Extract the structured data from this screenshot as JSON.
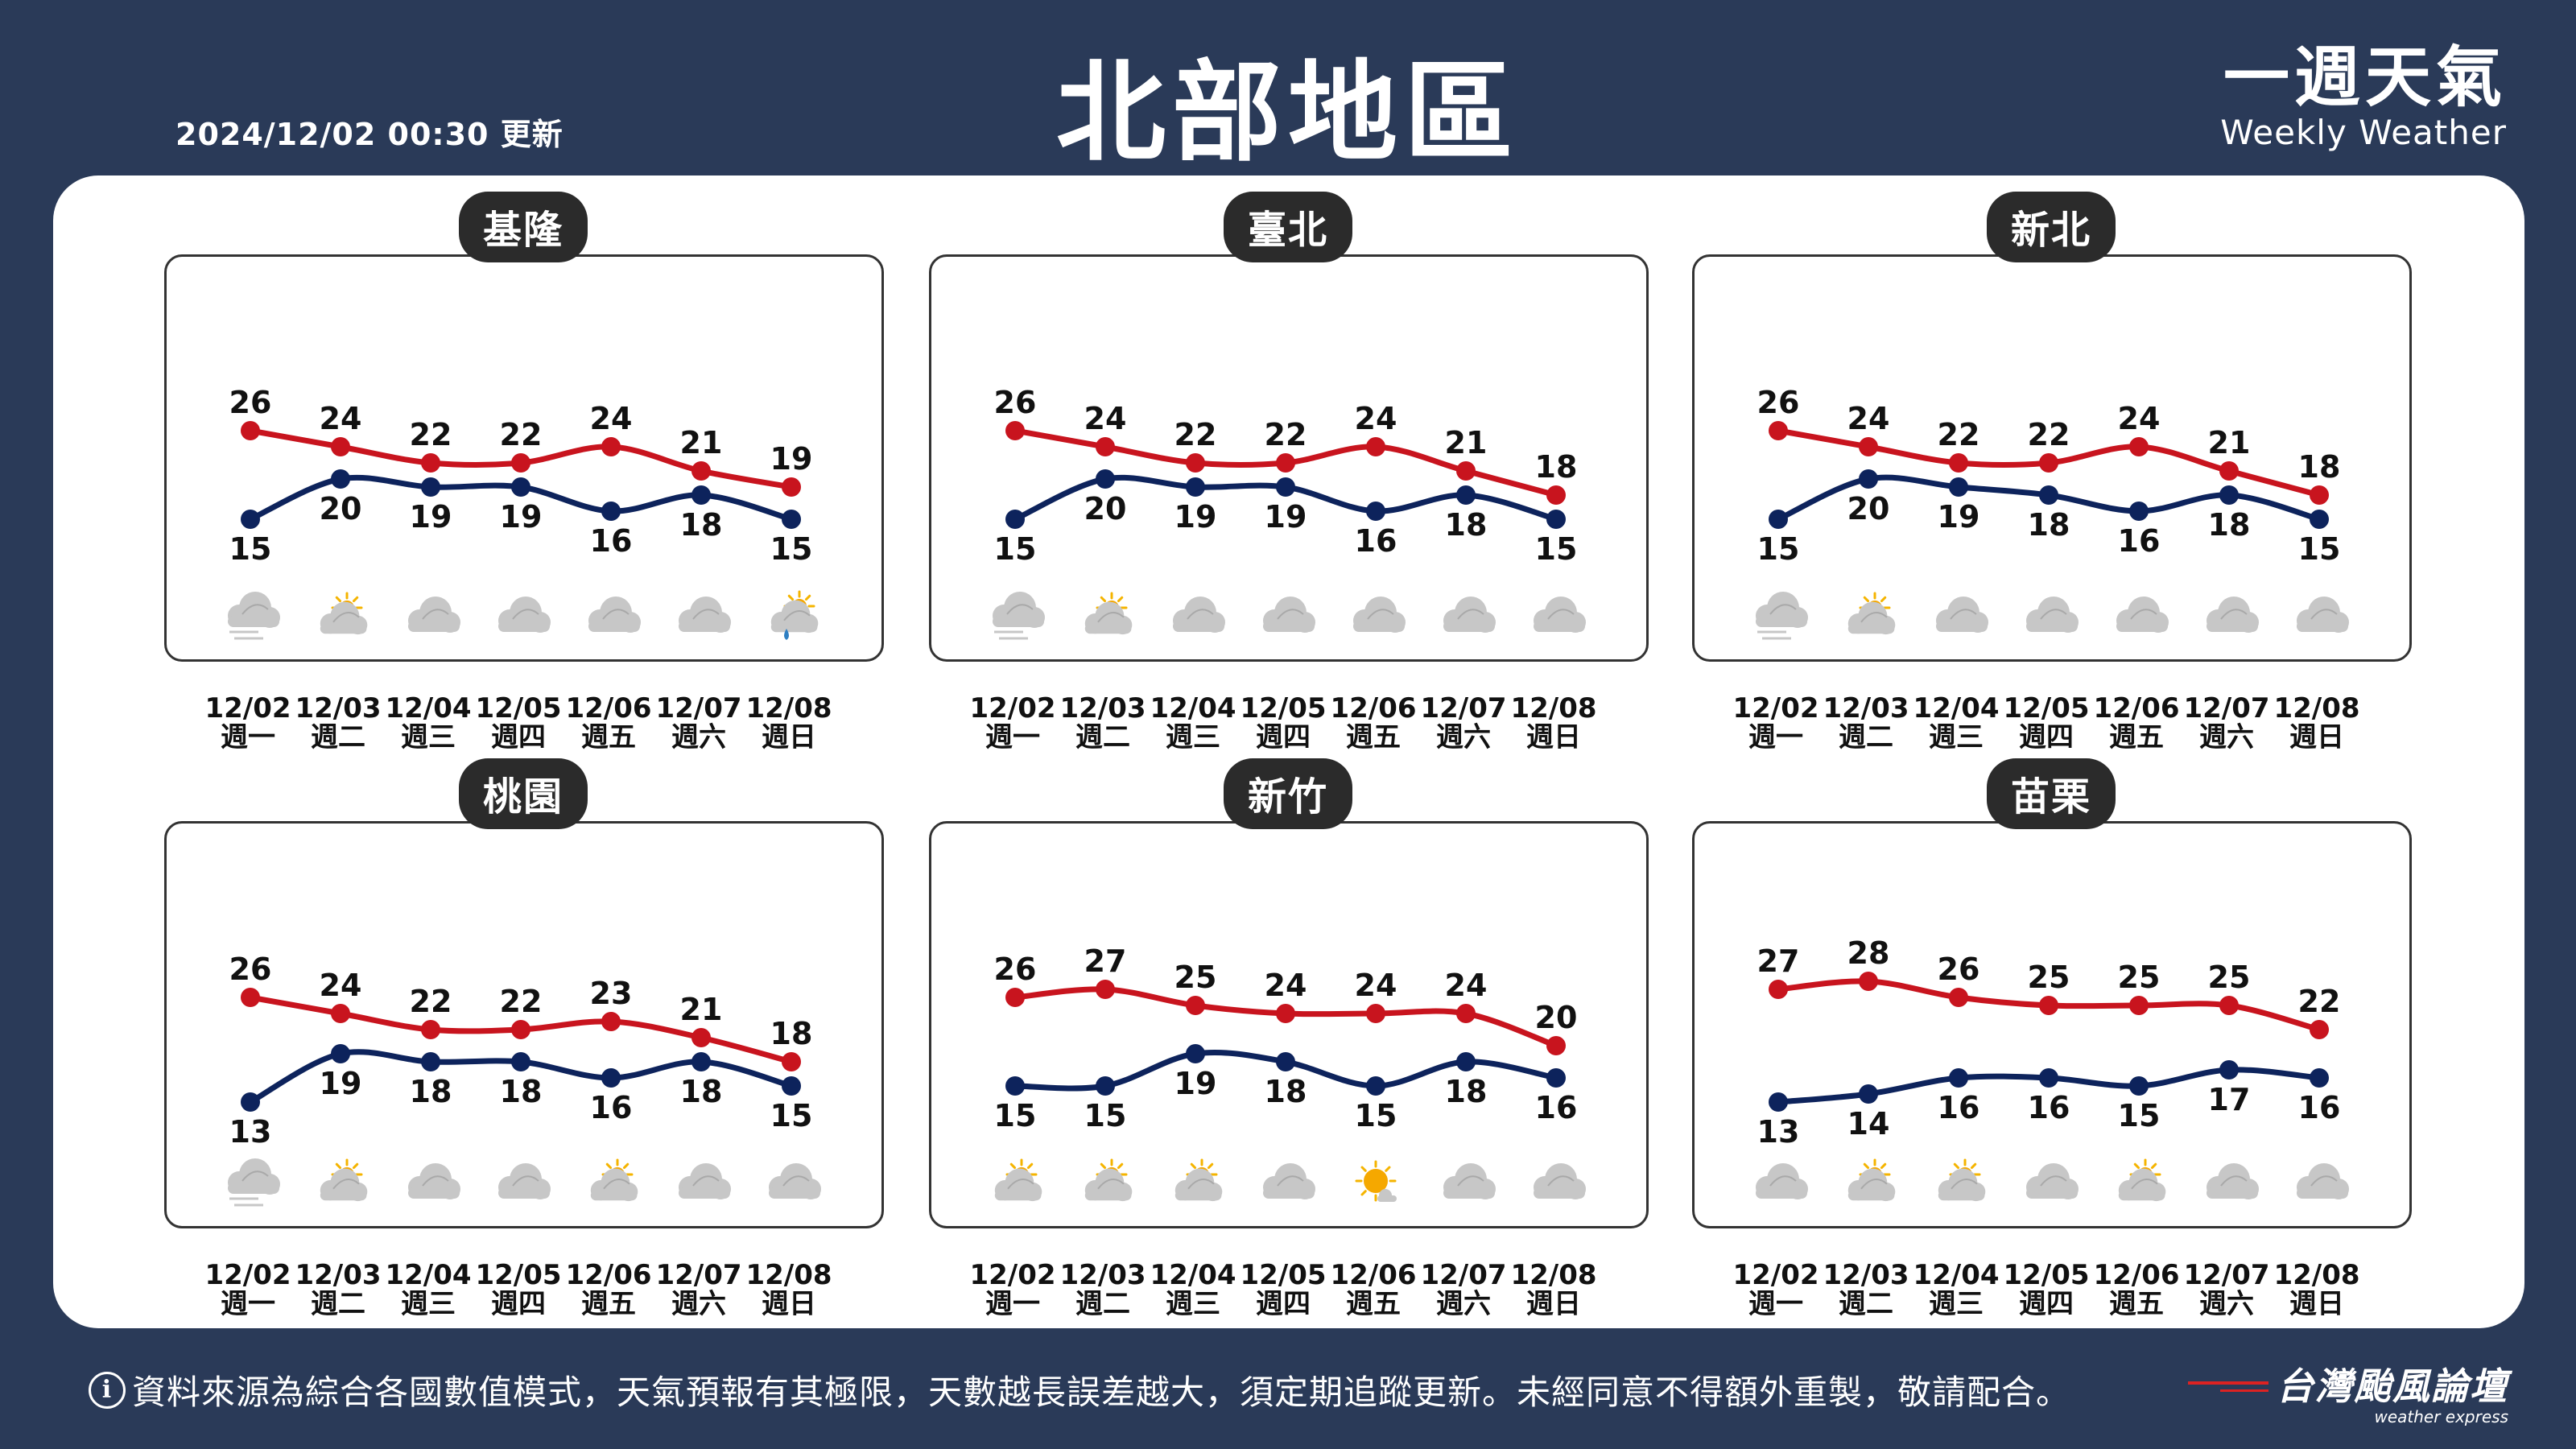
{
  "header": {
    "updated": "2024/12/02 00:30 更新",
    "title": "北部地區",
    "brand_zh": "一週天氣",
    "brand_en": "Weekly Weather"
  },
  "colors": {
    "high": "#c8141e",
    "low": "#0d235c",
    "background": "#2a3a58"
  },
  "days": [
    {
      "date": "12/02",
      "weekday": "週一"
    },
    {
      "date": "12/03",
      "weekday": "週二"
    },
    {
      "date": "12/04",
      "weekday": "週三"
    },
    {
      "date": "12/05",
      "weekday": "週四"
    },
    {
      "date": "12/06",
      "weekday": "週五"
    },
    {
      "date": "12/07",
      "weekday": "週六"
    },
    {
      "date": "12/08",
      "weekday": "週日"
    }
  ],
  "cities": [
    {
      "name": "基隆",
      "high": [
        26,
        24,
        22,
        22,
        24,
        21,
        19
      ],
      "low": [
        15,
        20,
        19,
        19,
        16,
        18,
        15
      ],
      "icons": [
        "cloud-fog-icon",
        "sun-cloud-icon",
        "cloud-icon",
        "cloud-icon",
        "cloud-icon",
        "cloud-icon",
        "sun-cloud-rain-icon"
      ]
    },
    {
      "name": "臺北",
      "high": [
        26,
        24,
        22,
        22,
        24,
        21,
        18
      ],
      "low": [
        15,
        20,
        19,
        19,
        16,
        18,
        15
      ],
      "icons": [
        "cloud-fog-icon",
        "sun-cloud-icon",
        "cloud-icon",
        "cloud-icon",
        "cloud-icon",
        "cloud-icon",
        "cloud-icon"
      ]
    },
    {
      "name": "新北",
      "high": [
        26,
        24,
        22,
        22,
        24,
        21,
        18
      ],
      "low": [
        15,
        20,
        19,
        18,
        16,
        18,
        15
      ],
      "icons": [
        "cloud-fog-icon",
        "sun-cloud-icon",
        "cloud-icon",
        "cloud-icon",
        "cloud-icon",
        "cloud-icon",
        "cloud-icon"
      ]
    },
    {
      "name": "桃園",
      "high": [
        26,
        24,
        22,
        22,
        23,
        21,
        18
      ],
      "low": [
        13,
        19,
        18,
        18,
        16,
        18,
        15
      ],
      "icons": [
        "cloud-fog-icon",
        "sun-cloud-icon",
        "cloud-icon",
        "cloud-icon",
        "sun-cloud-icon",
        "cloud-icon",
        "cloud-icon"
      ]
    },
    {
      "name": "新竹",
      "high": [
        26,
        27,
        25,
        24,
        24,
        24,
        20
      ],
      "low": [
        15,
        15,
        19,
        18,
        15,
        18,
        16
      ],
      "icons": [
        "sun-cloud-icon",
        "sun-cloud-icon",
        "sun-cloud-icon",
        "cloud-icon",
        "sun-icon",
        "cloud-icon",
        "cloud-icon"
      ]
    },
    {
      "name": "苗栗",
      "high": [
        27,
        28,
        26,
        25,
        25,
        25,
        22
      ],
      "low": [
        13,
        14,
        16,
        16,
        15,
        17,
        16
      ],
      "icons": [
        "cloud-icon",
        "sun-cloud-icon",
        "sun-cloud-icon",
        "cloud-icon",
        "sun-cloud-icon",
        "cloud-icon",
        "cloud-icon"
      ]
    }
  ],
  "footer": {
    "info_symbol": "i",
    "text": "資料來源為綜合各國數值模式，天氣預報有其極限，天數越長誤差越大，須定期追蹤更新。未經同意不得額外重製，敬請配合。",
    "logo_name": "台灣颱風論壇",
    "logo_sub": "weather express"
  }
}
